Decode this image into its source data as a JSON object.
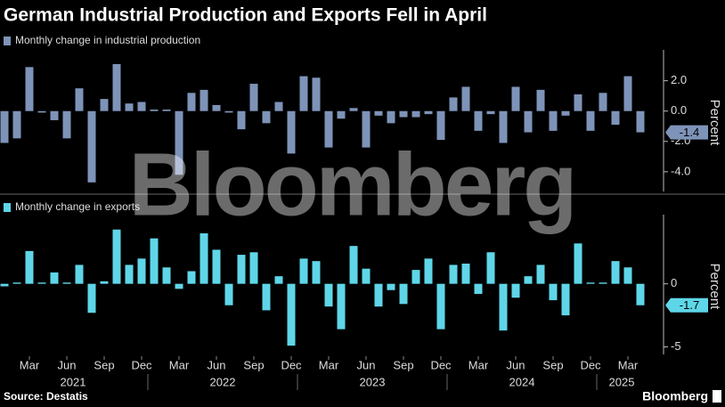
{
  "title": "German Industrial Production and Exports Fell in April",
  "source": "Source: Destatis",
  "logo": "Bloomberg",
  "watermark": "Bloomberg",
  "chart_data": [
    {
      "type": "bar",
      "series": [
        {
          "name": "Monthly change in industrial production",
          "color": "#7e93b8",
          "values": [
            -2.1,
            -1.8,
            2.9,
            -0.1,
            -0.6,
            -1.8,
            1.5,
            -4.7,
            0.8,
            3.1,
            0.5,
            0.6,
            0.1,
            0.1,
            -4.2,
            1.2,
            1.4,
            0.4,
            -0.1,
            -1.2,
            1.8,
            -0.8,
            0.6,
            -2.8,
            2.3,
            2.2,
            -2.4,
            -0.5,
            0.2,
            -2.4,
            -0.3,
            -0.8,
            -0.4,
            -0.4,
            -0.2,
            -1.9,
            0.9,
            1.6,
            -1.3,
            -0.2,
            -2.1,
            1.6,
            -1.4,
            1.4,
            -1.3,
            -0.3,
            1.1,
            -1.3,
            1.2,
            -0.9,
            2.3,
            -1.4
          ]
        }
      ],
      "ylim": [
        -5.3,
        3.8
      ],
      "yticks": [
        {
          "value": 2,
          "label": "2.0"
        },
        {
          "value": 0,
          "label": "0.0"
        },
        {
          "value": -2,
          "label": "-2.0"
        },
        {
          "value": -4,
          "label": "-4.0"
        }
      ],
      "y_label": "Percent"
    },
    {
      "type": "bar",
      "series": [
        {
          "name": "Monthly change in exports",
          "color": "#5fd6e8",
          "values": [
            -0.2,
            0.1,
            2.6,
            0.1,
            0.9,
            0.1,
            1.5,
            -2.3,
            0.2,
            4.3,
            1.5,
            2.0,
            3.6,
            1.3,
            -0.4,
            1.0,
            4.0,
            2.7,
            -1.7,
            2.3,
            2.5,
            -2.1,
            0.6,
            -4.9,
            2.0,
            1.8,
            -1.8,
            -3.6,
            3.0,
            1.2,
            -1.8,
            -0.5,
            -1.6,
            1.1,
            2.0,
            -3.6,
            1.5,
            1.6,
            -0.8,
            2.5,
            -3.7,
            -1.1,
            0.6,
            1.5,
            -1.3,
            -2.5,
            3.2,
            0.1,
            0.1,
            1.8,
            1.3,
            -1.7
          ]
        }
      ],
      "ylim": [
        -5.6,
        5.2
      ],
      "yticks": [
        0,
        -5
      ],
      "y_label": "Percent",
      "categories": [
        null,
        null,
        "Mar",
        null,
        null,
        "Jun",
        null,
        null,
        "Sep",
        null,
        null,
        "Dec",
        null,
        null,
        "Mar",
        null,
        null,
        "Jun",
        null,
        null,
        "Sep",
        null,
        null,
        "Dec",
        null,
        null,
        "Mar",
        null,
        null,
        "Jun",
        null,
        null,
        "Sep",
        null,
        null,
        "Dec",
        null,
        null,
        "Mar",
        null,
        null,
        "Jun",
        null,
        null,
        "Sep",
        null,
        null,
        "Dec",
        null,
        null,
        "Mar",
        null
      ],
      "years": [
        "2021",
        "2022",
        "2023",
        "2024",
        "2025"
      ]
    }
  ]
}
